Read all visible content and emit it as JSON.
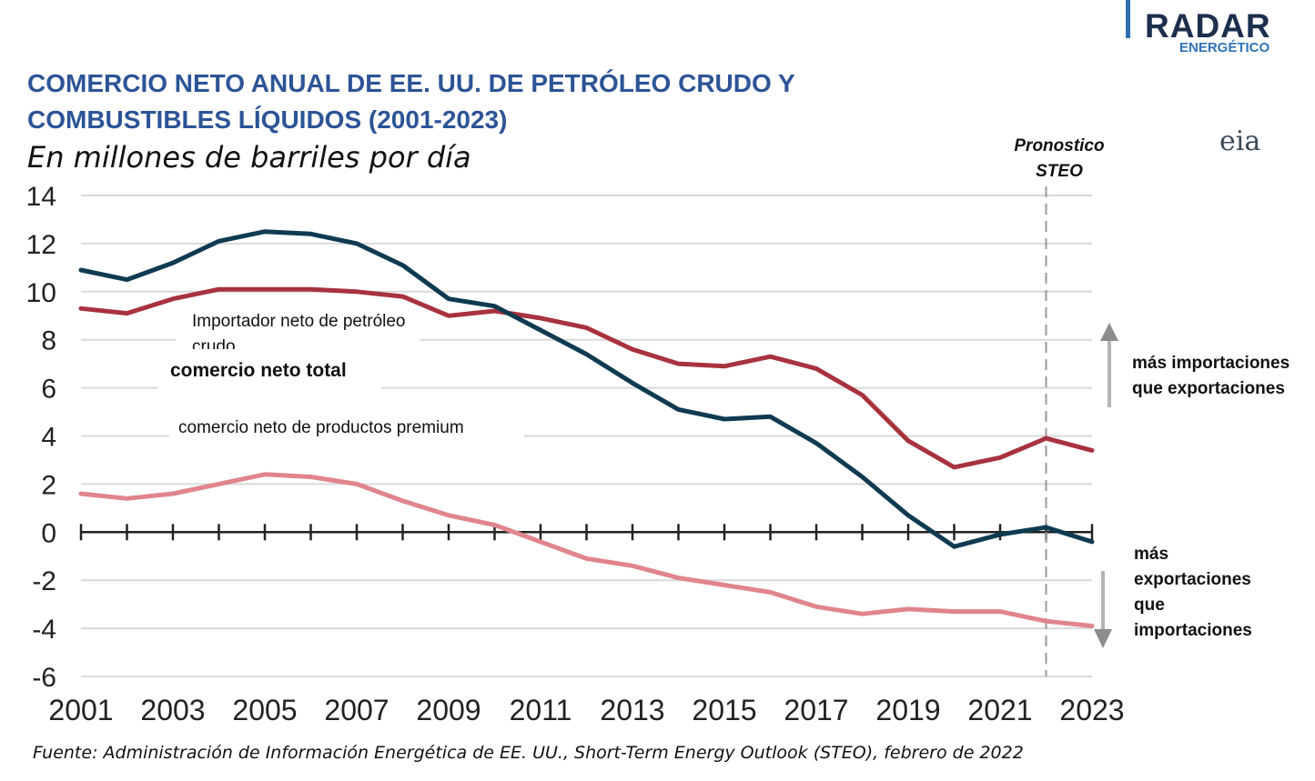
{
  "brand": {
    "name": "RADAR",
    "sub": "ENERGÉTICO",
    "eia": "eia"
  },
  "title": "COMERCIO NETO ANUAL DE EE. UU. DE PETRÓLEO CRUDO Y COMBUSTIBLES LÍQUIDOS (2001-2023)",
  "subtitle": "En millones de barriles por día",
  "forecast_label": "Pronostico STEO",
  "labels": {
    "crude": "Importador neto de petróleo crudo",
    "total": "comercio neto total",
    "products": "comercio neto de productos premium"
  },
  "notes": {
    "up": "más importaciones que exportaciones",
    "down": "más exportaciones que importaciones"
  },
  "source": "Fuente: Administración de Información Energética de EE. UU., Short-Term Energy Outlook (STEO), febrero de 2022",
  "colors": {
    "crude": "#a8323e",
    "total": "#0f3a52",
    "products": "#e0858d",
    "grid": "#d9d9d9",
    "axis": "#222222",
    "title": "#2c5496"
  },
  "chart_data": {
    "type": "line",
    "title": "COMERCIO NETO ANUAL DE EE. UU. DE PETRÓLEO CRUDO Y COMBUSTIBLES LÍQUIDOS (2001-2023)",
    "ylabel": "En millones de barriles por día",
    "x": [
      2001,
      2002,
      2003,
      2004,
      2005,
      2006,
      2007,
      2008,
      2009,
      2010,
      2011,
      2012,
      2013,
      2014,
      2015,
      2016,
      2017,
      2018,
      2019,
      2020,
      2021,
      2022,
      2023
    ],
    "xticks": [
      "2001",
      "2003",
      "2005",
      "2007",
      "2009",
      "2011",
      "2013",
      "2015",
      "2017",
      "2019",
      "2021",
      "2023"
    ],
    "yticks": [
      "14",
      "12",
      "10",
      "8",
      "6",
      "4",
      "2",
      "0",
      "-2",
      "-4",
      "-6"
    ],
    "ylim": [
      -6,
      14
    ],
    "xlim": [
      2001,
      2023
    ],
    "forecast_start": 2022,
    "grid": true,
    "series": [
      {
        "key": "total",
        "name": "comercio neto total",
        "values": [
          10.9,
          10.5,
          11.2,
          12.1,
          12.5,
          12.4,
          12.0,
          11.1,
          9.7,
          9.4,
          8.4,
          7.4,
          6.2,
          5.1,
          4.7,
          4.8,
          3.7,
          2.3,
          0.7,
          -0.6,
          -0.1,
          0.2,
          -0.4
        ]
      },
      {
        "key": "crude",
        "name": "Importador neto de petróleo crudo",
        "values": [
          9.3,
          9.1,
          9.7,
          10.1,
          10.1,
          10.1,
          10.0,
          9.8,
          9.0,
          9.2,
          8.9,
          8.5,
          7.6,
          7.0,
          6.9,
          7.3,
          6.8,
          5.7,
          3.8,
          2.7,
          3.1,
          3.9,
          3.4
        ]
      },
      {
        "key": "products",
        "name": "comercio neto de productos premium",
        "values": [
          1.6,
          1.4,
          1.6,
          2.0,
          2.4,
          2.3,
          2.0,
          1.3,
          0.7,
          0.3,
          -0.4,
          -1.1,
          -1.4,
          -1.9,
          -2.2,
          -2.5,
          -3.1,
          -3.4,
          -3.2,
          -3.3,
          -3.3,
          -3.7,
          -3.9
        ]
      }
    ]
  }
}
